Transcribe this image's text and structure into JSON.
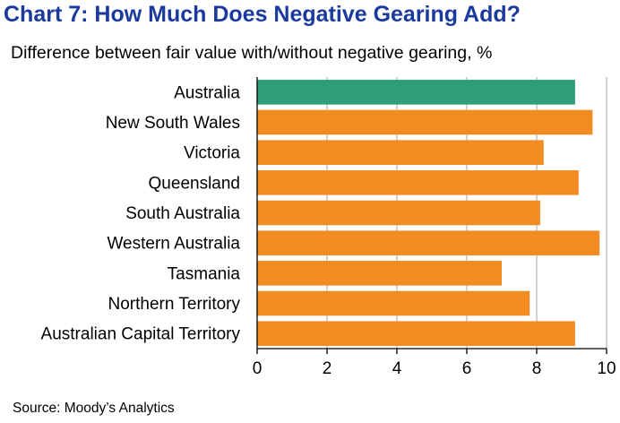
{
  "chart_data": {
    "type": "bar",
    "orientation": "horizontal",
    "title": "Chart 7: How Much Does Negative Gearing Add?",
    "subtitle": "Difference between fair value with/without negative gearing, %",
    "source": "Source: Moody’s Analytics",
    "categories": [
      "Australia",
      "New South Wales",
      "Victoria",
      "Queensland",
      "South Australia",
      "Western Australia",
      "Tasmania",
      "Northern Territory",
      "Australian Capital Territory"
    ],
    "values": [
      9.1,
      9.6,
      8.2,
      9.2,
      8.1,
      9.8,
      7.0,
      7.8,
      9.1
    ],
    "xlim": [
      0,
      10
    ],
    "xticks": [
      0,
      2,
      4,
      6,
      8,
      10
    ],
    "grid": "vertical gridlines",
    "legend": "none",
    "colors": {
      "highlight": "#2e9e78",
      "default": "#f28c22"
    },
    "highlight_categories": [
      "Australia"
    ]
  }
}
